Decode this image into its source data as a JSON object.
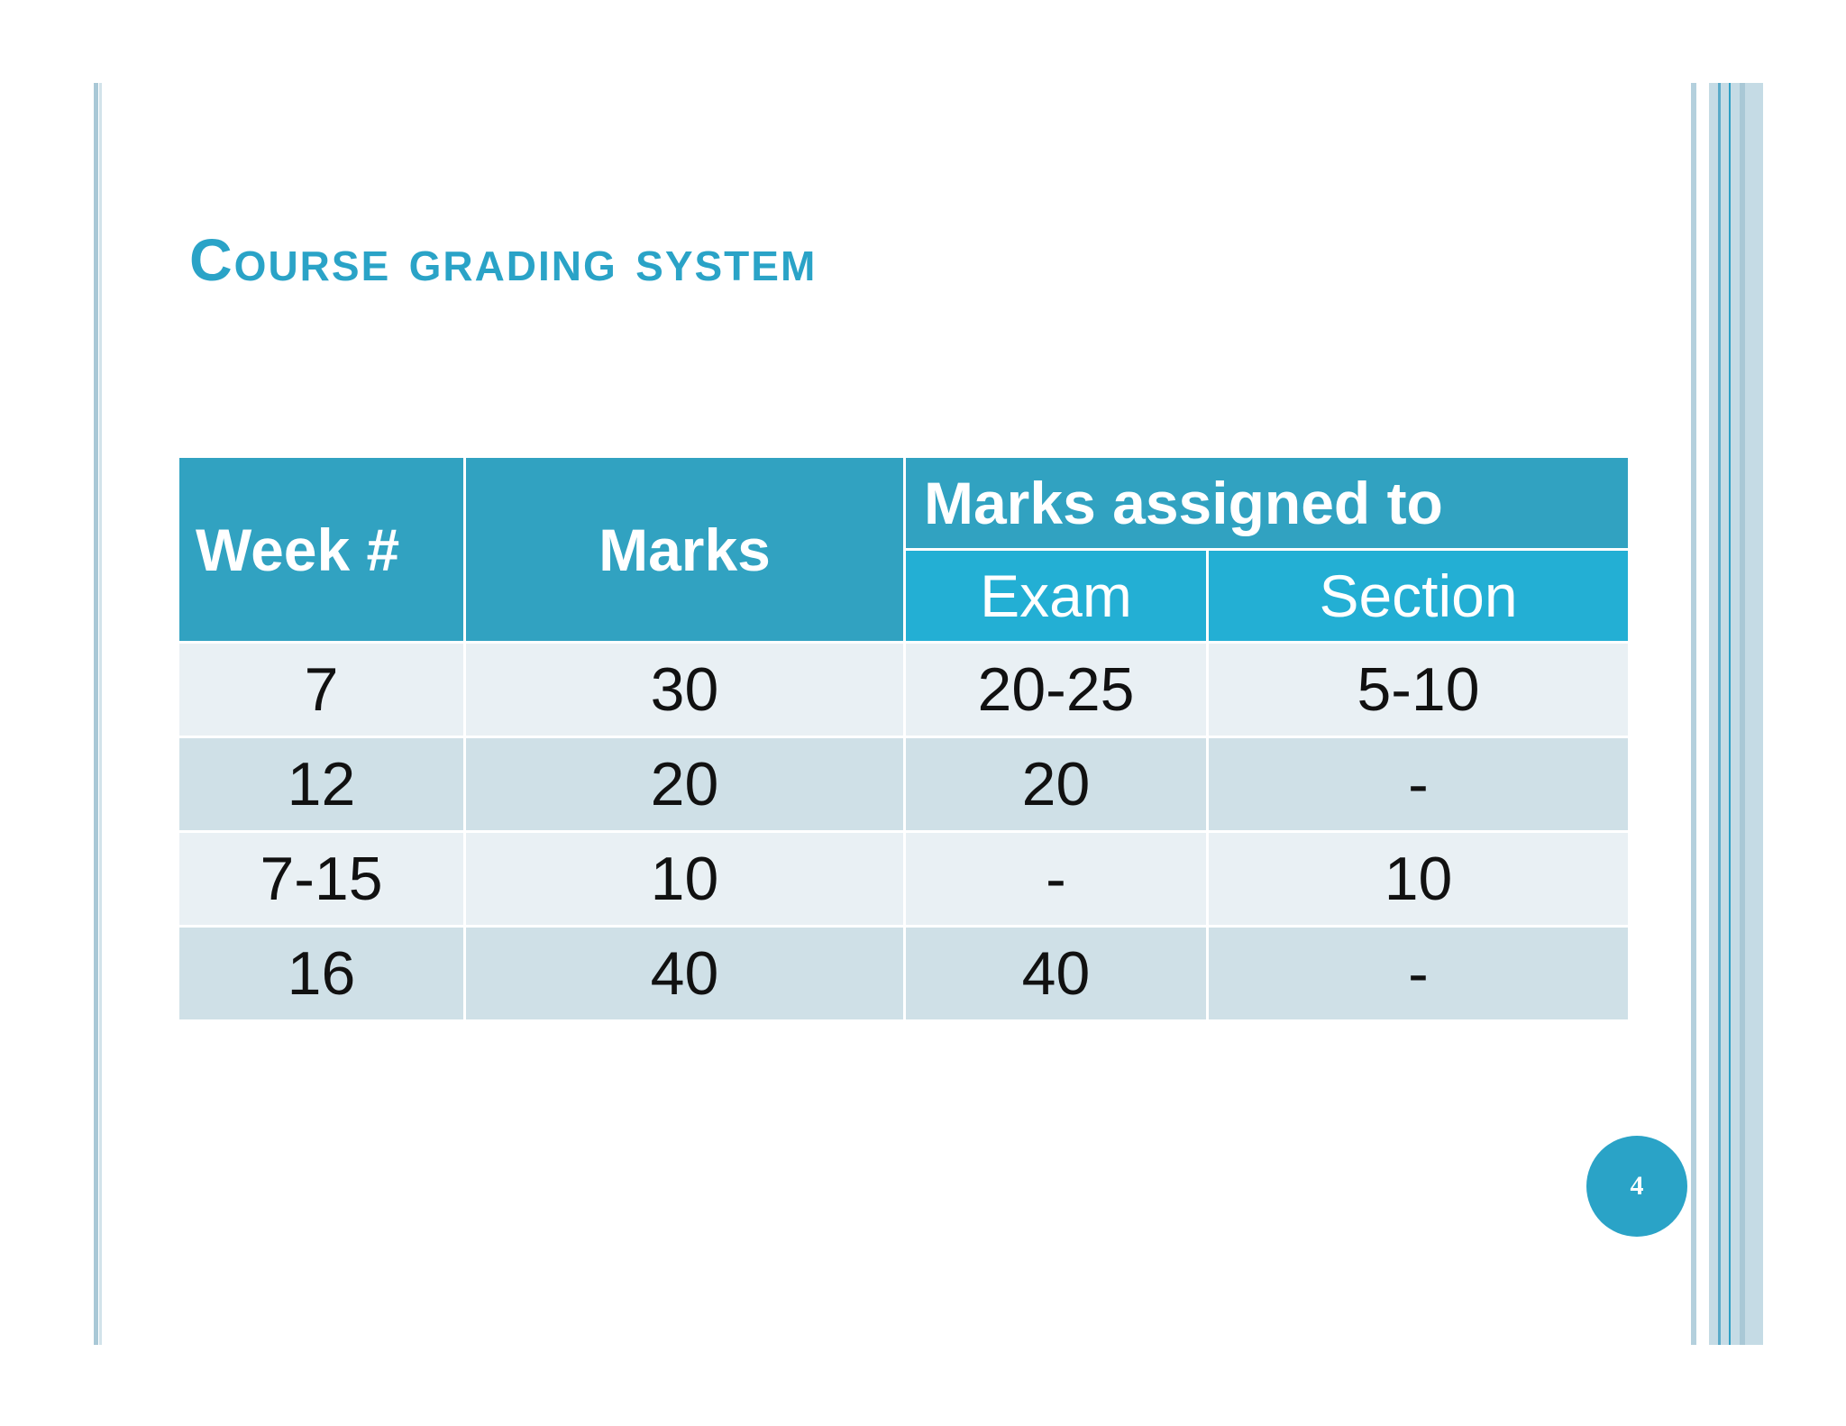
{
  "slide": {
    "title": "Course grading system",
    "page_number": "4"
  },
  "table": {
    "headers": {
      "week": "Week #",
      "marks": "Marks",
      "group": "Marks assigned to",
      "exam": "Exam",
      "section": "Section"
    },
    "rows": [
      {
        "week": "7",
        "marks": "30",
        "exam": "20-25",
        "section": "5-10"
      },
      {
        "week": "12",
        "marks": "20",
        "exam": "20",
        "section": "-"
      },
      {
        "week": "7-15",
        "marks": "10",
        "exam": "-",
        "section": "10"
      },
      {
        "week": "16",
        "marks": "40",
        "exam": "40",
        "section": "-"
      }
    ]
  },
  "colors": {
    "accent": "#2aa3c7",
    "header_bg": "#31a2c1",
    "subheader_bg": "#23afd4",
    "row_light": "#e9f0f4",
    "row_dark": "#cfe0e7"
  }
}
